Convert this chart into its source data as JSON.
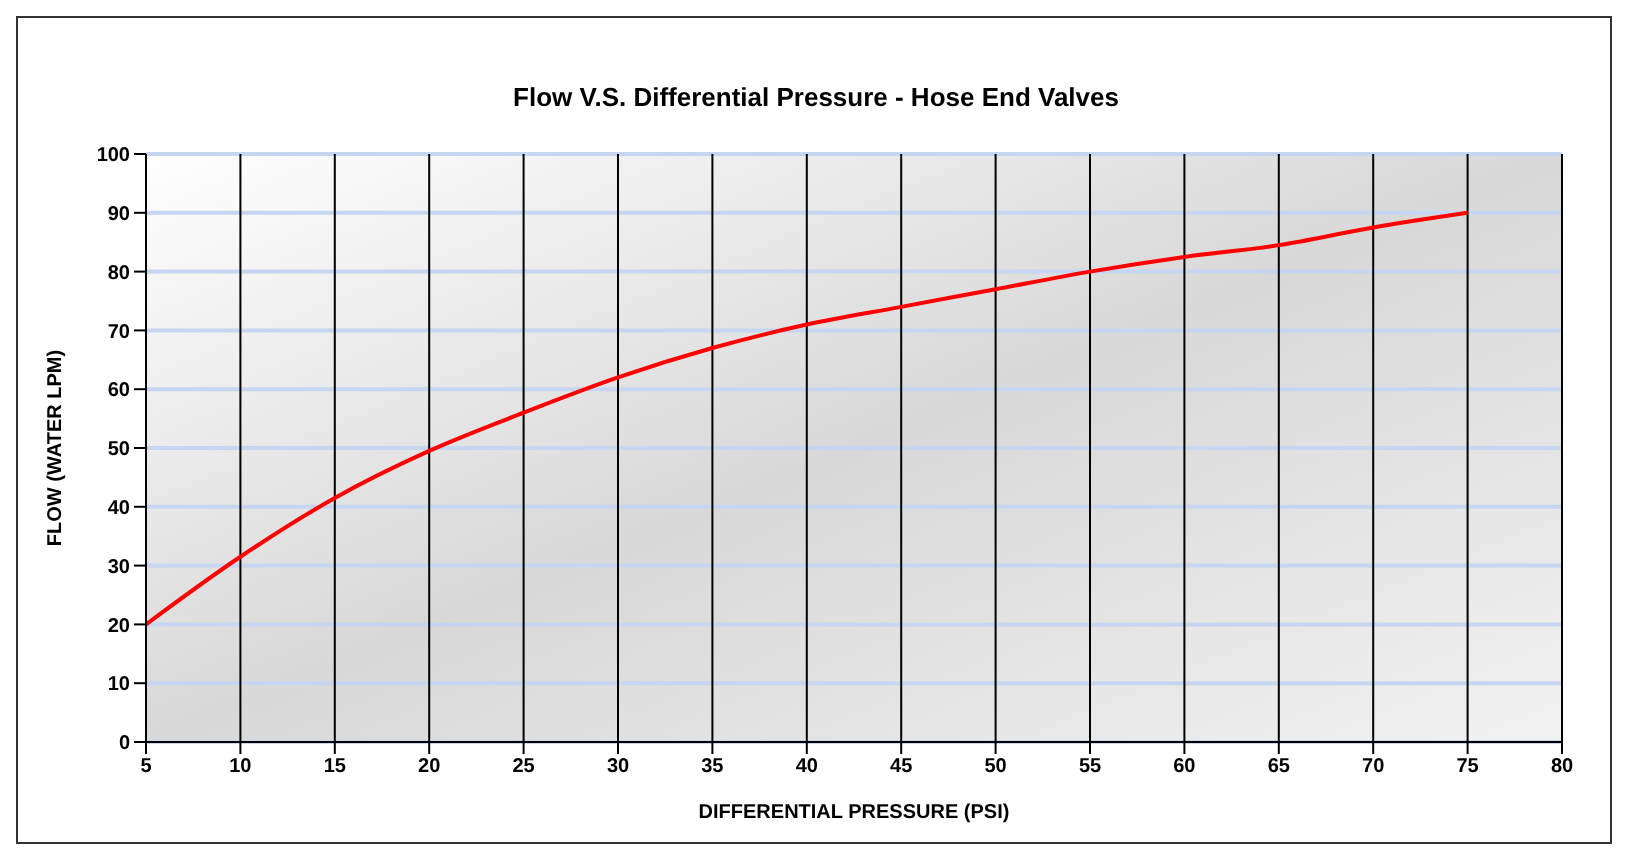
{
  "chart_data": {
    "type": "line",
    "title": "Flow V.S. Differential Pressure - Hose End Valves",
    "xlabel": "DIFFERENTIAL PRESSURE (PSI)",
    "ylabel": "FLOW (WATER LPM)",
    "x": [
      5,
      10,
      15,
      20,
      25,
      30,
      35,
      40,
      45,
      50,
      55,
      60,
      65,
      70,
      75
    ],
    "series": [
      {
        "color": "#ff0000",
        "values": [
          20,
          31.5,
          41.5,
          49.5,
          56,
          62,
          67,
          71,
          74,
          77,
          80,
          82.5,
          84.5,
          87.5,
          90
        ]
      }
    ],
    "xlim": [
      5,
      80
    ],
    "xticks": [
      5,
      10,
      15,
      20,
      25,
      30,
      35,
      40,
      45,
      50,
      55,
      60,
      65,
      70,
      75,
      80
    ],
    "ylim": [
      0,
      100
    ],
    "yticks": [
      0,
      10,
      20,
      30,
      40,
      50,
      60,
      70,
      80,
      90,
      100
    ],
    "grid": true,
    "legend": false,
    "marker": "none",
    "line_style": "solid"
  }
}
